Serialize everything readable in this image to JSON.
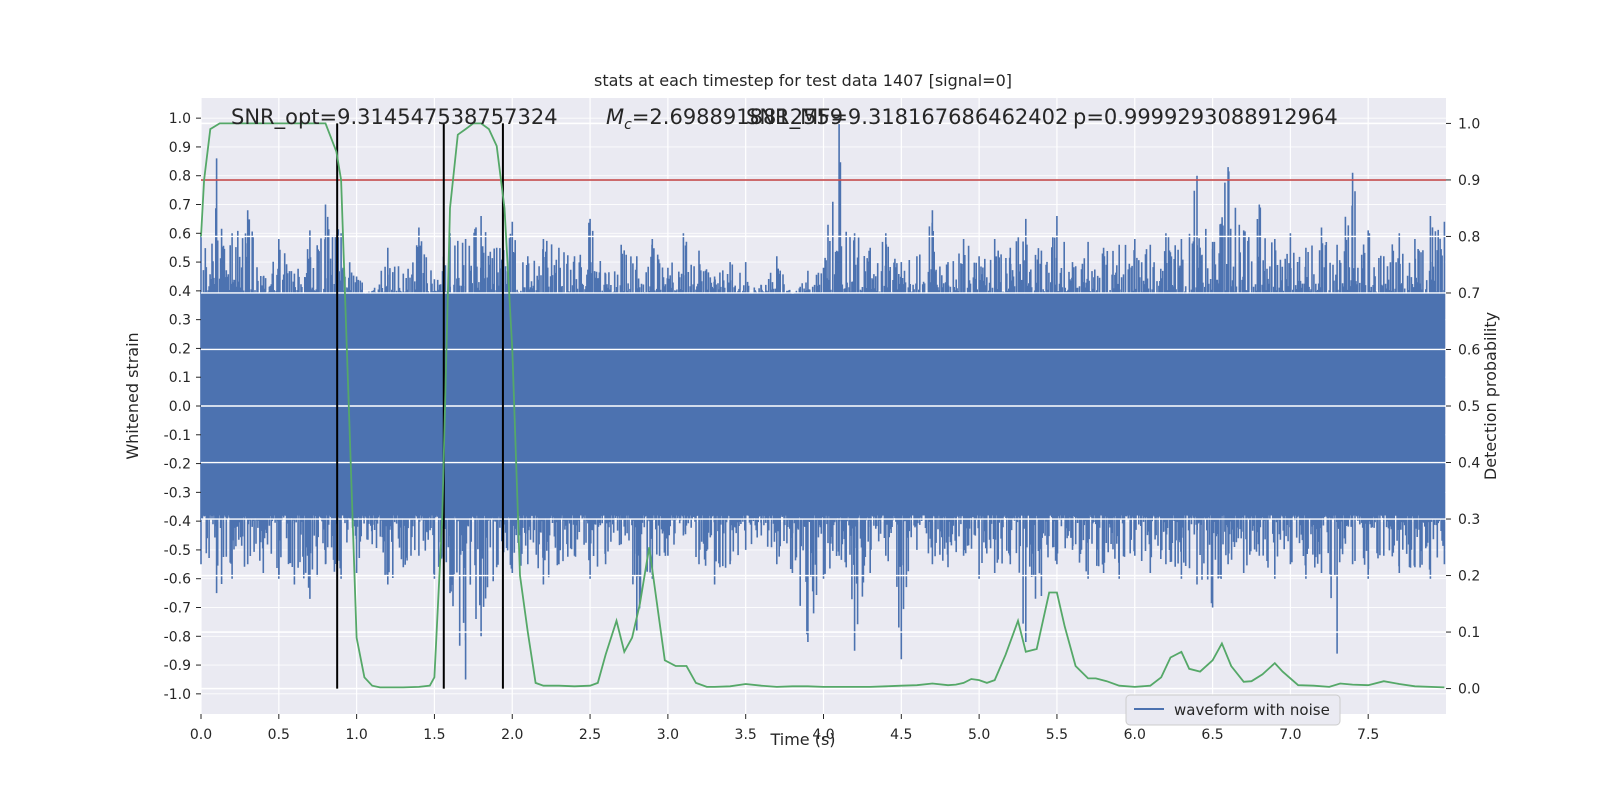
{
  "chart_data": {
    "type": "line",
    "title": "stats at each timestep for test data 1407 [signal=0]",
    "xlabel": "Time (s)",
    "ylabel_left": "Whitened strain",
    "ylabel_right": "Detection probability",
    "xlim": [
      0.0,
      8.0
    ],
    "ylim_left": [
      -1.07,
      1.07
    ],
    "ylim_right": [
      -0.045,
      1.045
    ],
    "grid": true,
    "x_ticks": [
      "0.0",
      "0.5",
      "1.0",
      "1.5",
      "2.0",
      "2.5",
      "3.0",
      "3.5",
      "4.0",
      "4.5",
      "5.0",
      "5.5",
      "6.0",
      "6.5",
      "7.0",
      "7.5"
    ],
    "y_ticks_left": [
      "1.0",
      "0.9",
      "0.8",
      "0.7",
      "0.6",
      "0.5",
      "0.4",
      "0.3",
      "0.2",
      "0.1",
      "0.0",
      "-0.1",
      "-0.2",
      "-0.3",
      "-0.4",
      "-0.5",
      "-0.6",
      "-0.7",
      "-0.8",
      "-0.9",
      "-1.0"
    ],
    "y_ticks_right": [
      "1.0",
      "0.9",
      "0.8",
      "0.7",
      "0.6",
      "0.5",
      "0.4",
      "0.3",
      "0.2",
      "0.1",
      "0.0"
    ],
    "annotations": [
      "SNR_opt=9.314547538757324",
      "$M_c$=2.69889188125591",
      "SNR_MF=9.318167686462402",
      "p=0.9999293088912964"
    ],
    "annotation_mc_prefix": "M",
    "annotation_mc_sub": "c",
    "annotation_mc_value": "=2.6988918812559",
    "annotation_snr_mf": "SNR_MF=9.318167686462402",
    "annotation_p": "p=0.9999293088912964",
    "annotation_snr_opt": "SNR_opt=9.314547538757324",
    "threshold_right": 0.9,
    "vertical_lines_x": [
      0.875,
      1.56,
      1.94
    ],
    "legend": {
      "label": "waveform with noise",
      "placement": "lower-right"
    },
    "series": [
      {
        "name": "waveform with noise",
        "kind": "noise-envelope",
        "color": "#4c72b0",
        "envelope_x": [
          0.0,
          0.1,
          0.2,
          0.3,
          0.4,
          0.5,
          0.6,
          0.7,
          0.8,
          0.9,
          1.0,
          1.1,
          1.2,
          1.3,
          1.4,
          1.5,
          1.6,
          1.7,
          1.8,
          1.9,
          2.0,
          2.1,
          2.2,
          2.3,
          2.4,
          2.5,
          2.6,
          2.7,
          2.8,
          2.9,
          3.0,
          3.1,
          3.2,
          3.3,
          3.4,
          3.5,
          3.6,
          3.7,
          3.8,
          3.9,
          4.0,
          4.1,
          4.2,
          4.3,
          4.4,
          4.5,
          4.6,
          4.7,
          4.8,
          4.9,
          5.0,
          5.1,
          5.2,
          5.3,
          5.4,
          5.5,
          5.6,
          5.7,
          5.8,
          5.9,
          6.0,
          6.1,
          6.2,
          6.3,
          6.4,
          6.5,
          6.6,
          6.7,
          6.8,
          6.9,
          7.0,
          7.1,
          7.2,
          7.3,
          7.4,
          7.5,
          7.6,
          7.7,
          7.8,
          7.9,
          7.99
        ],
        "envelope_upper": [
          0.6,
          0.86,
          0.6,
          0.68,
          0.45,
          0.58,
          0.46,
          0.61,
          0.7,
          0.6,
          0.45,
          0.4,
          0.55,
          0.46,
          0.62,
          0.44,
          0.6,
          0.58,
          0.66,
          0.55,
          0.64,
          0.52,
          0.58,
          0.55,
          0.52,
          0.65,
          0.46,
          0.56,
          0.52,
          0.58,
          0.48,
          0.6,
          0.54,
          0.45,
          0.5,
          0.5,
          0.42,
          0.52,
          0.38,
          0.47,
          0.48,
          1.0,
          0.6,
          0.55,
          0.6,
          0.5,
          0.52,
          0.68,
          0.5,
          0.58,
          0.52,
          0.58,
          0.55,
          0.65,
          0.54,
          0.66,
          0.5,
          0.57,
          0.55,
          0.56,
          0.58,
          0.56,
          0.6,
          0.58,
          0.8,
          0.57,
          0.83,
          0.61,
          0.7,
          0.58,
          0.6,
          0.55,
          0.62,
          0.56,
          0.81,
          0.61,
          0.52,
          0.6,
          0.58,
          0.66,
          0.64
        ],
        "envelope_lower": [
          -0.55,
          -0.65,
          -0.6,
          -0.55,
          -0.58,
          -0.6,
          -0.62,
          -0.67,
          -0.55,
          -0.6,
          -0.58,
          -0.48,
          -0.62,
          -0.56,
          -0.52,
          -0.6,
          -0.65,
          -0.95,
          -0.8,
          -0.56,
          -0.58,
          -0.55,
          -0.62,
          -0.55,
          -0.52,
          -0.6,
          -0.55,
          -0.48,
          -0.78,
          -0.6,
          -0.52,
          -0.45,
          -0.55,
          -0.62,
          -0.55,
          -0.5,
          -0.45,
          -0.55,
          -0.58,
          -0.82,
          -0.6,
          -0.52,
          -0.85,
          -0.58,
          -0.52,
          -0.88,
          -0.5,
          -0.55,
          -0.56,
          -0.52,
          -0.6,
          -0.58,
          -0.55,
          -0.82,
          -0.66,
          -0.55,
          -0.5,
          -0.6,
          -0.58,
          -0.6,
          -0.52,
          -0.58,
          -0.55,
          -0.6,
          -0.62,
          -0.7,
          -0.55,
          -0.58,
          -0.52,
          -0.6,
          -0.55,
          -0.6,
          -0.58,
          -0.86,
          -0.55,
          -0.6,
          -0.52,
          -0.58,
          -0.56,
          -0.6,
          -0.55
        ],
        "dense_band": [
          -0.38,
          0.39
        ]
      },
      {
        "kind": "detection-probability",
        "axis": "right",
        "color": "#55a868",
        "x": [
          0.0,
          0.02,
          0.06,
          0.12,
          0.2,
          0.3,
          0.4,
          0.5,
          0.6,
          0.7,
          0.8,
          0.87,
          0.9,
          0.95,
          1.0,
          1.05,
          1.1,
          1.15,
          1.2,
          1.3,
          1.4,
          1.47,
          1.5,
          1.55,
          1.6,
          1.65,
          1.7,
          1.75,
          1.8,
          1.85,
          1.9,
          1.95,
          2.0,
          2.05,
          2.1,
          2.15,
          2.2,
          2.3,
          2.4,
          2.5,
          2.55,
          2.6,
          2.67,
          2.72,
          2.77,
          2.82,
          2.88,
          2.93,
          2.98,
          3.05,
          3.12,
          3.18,
          3.25,
          3.3,
          3.4,
          3.5,
          3.6,
          3.7,
          3.8,
          3.9,
          4.0,
          4.1,
          4.2,
          4.3,
          4.4,
          4.5,
          4.6,
          4.7,
          4.8,
          4.85,
          4.9,
          4.95,
          5.0,
          5.05,
          5.1,
          5.17,
          5.25,
          5.3,
          5.37,
          5.45,
          5.5,
          5.55,
          5.62,
          5.7,
          5.75,
          5.82,
          5.9,
          6.0,
          6.1,
          6.17,
          6.23,
          6.3,
          6.35,
          6.42,
          6.5,
          6.56,
          6.62,
          6.7,
          6.75,
          6.82,
          6.9,
          6.95,
          7.05,
          7.15,
          7.25,
          7.32,
          7.4,
          7.5,
          7.6,
          7.7,
          7.8,
          7.99
        ],
        "y": [
          0.8,
          0.9,
          0.99,
          1.0,
          1.0,
          1.0,
          1.0,
          1.0,
          1.0,
          1.0,
          1.0,
          0.95,
          0.9,
          0.5,
          0.09,
          0.02,
          0.005,
          0.002,
          0.002,
          0.002,
          0.003,
          0.005,
          0.02,
          0.3,
          0.85,
          0.98,
          0.99,
          1.0,
          1.0,
          0.99,
          0.96,
          0.85,
          0.6,
          0.2,
          0.1,
          0.01,
          0.005,
          0.005,
          0.004,
          0.005,
          0.01,
          0.06,
          0.12,
          0.065,
          0.09,
          0.15,
          0.25,
          0.15,
          0.05,
          0.04,
          0.04,
          0.01,
          0.003,
          0.003,
          0.004,
          0.008,
          0.005,
          0.003,
          0.004,
          0.004,
          0.003,
          0.003,
          0.003,
          0.003,
          0.004,
          0.005,
          0.006,
          0.009,
          0.006,
          0.007,
          0.01,
          0.017,
          0.015,
          0.01,
          0.015,
          0.06,
          0.12,
          0.065,
          0.07,
          0.17,
          0.17,
          0.11,
          0.04,
          0.018,
          0.018,
          0.013,
          0.005,
          0.003,
          0.005,
          0.02,
          0.055,
          0.065,
          0.035,
          0.03,
          0.05,
          0.08,
          0.04,
          0.012,
          0.013,
          0.025,
          0.045,
          0.03,
          0.006,
          0.005,
          0.003,
          0.009,
          0.007,
          0.006,
          0.013,
          0.008,
          0.004,
          0.002
        ]
      }
    ]
  }
}
